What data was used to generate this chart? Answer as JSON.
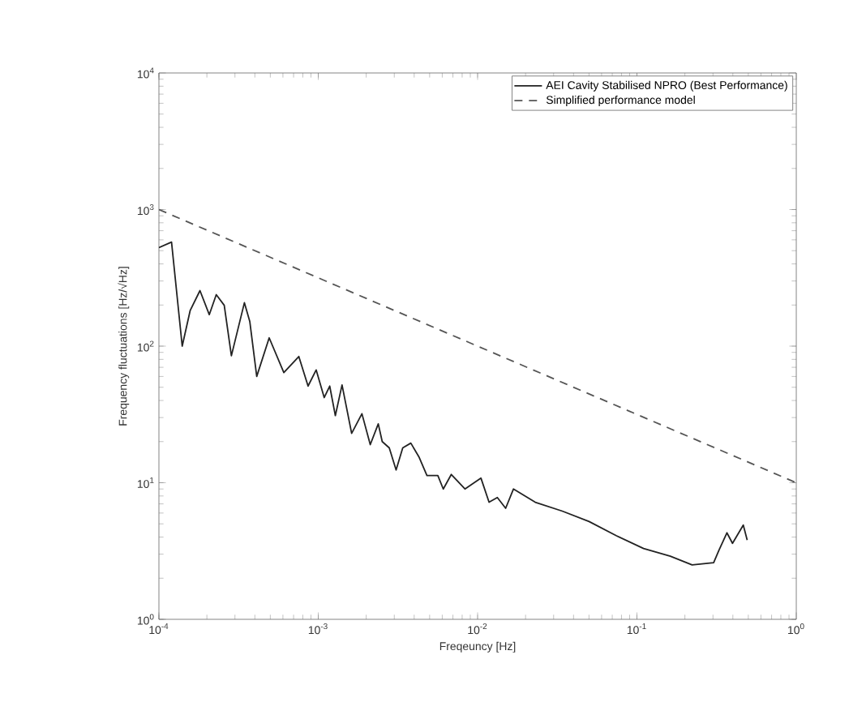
{
  "chart_data": {
    "type": "line",
    "xlabel": "Freqeuncy [Hz]",
    "ylabel": "Frequency fluctuations [Hz/√Hz]",
    "log": "xy",
    "legend": "top right",
    "xlim": [
      0.0001,
      1
    ],
    "ylim": [
      1,
      10000
    ],
    "xticks": [
      {
        "value": 0.0001,
        "label": "10$^{-4}$"
      },
      {
        "value": 0.001,
        "label": "10$^{-3}$"
      },
      {
        "value": 0.01,
        "label": "10$^{-2}$"
      },
      {
        "value": 0.1,
        "label": "10$^{-1}$"
      },
      {
        "value": 1,
        "label": "10$^{0}$"
      }
    ],
    "yticks": [
      {
        "value": 1,
        "label": "10$^{0}$"
      },
      {
        "value": 10,
        "label": "10$^{1}$"
      },
      {
        "value": 100,
        "label": "10$^{2}$"
      },
      {
        "value": 1000,
        "label": "10$^{3}$"
      },
      {
        "value": 10000,
        "label": "10$^{4}$"
      }
    ],
    "series": [
      {
        "name": "AEI Cavity Stabilised NPRO (Best Performance)",
        "color": "#222222",
        "line_style": "solid",
        "x": [
          0.0001,
          0.00012,
          0.00014,
          0.000157,
          0.000181,
          0.000207,
          0.000229,
          0.000257,
          0.000285,
          0.000344,
          0.000372,
          0.000411,
          0.000492,
          0.000608,
          0.000755,
          0.000863,
          0.00097,
          0.00109,
          0.00118,
          0.00128,
          0.00141,
          0.00162,
          0.00188,
          0.00212,
          0.00238,
          0.00252,
          0.00279,
          0.00308,
          0.00339,
          0.00381,
          0.00428,
          0.00481,
          0.00563,
          0.00609,
          0.00684,
          0.00833,
          0.0105,
          0.0118,
          0.0133,
          0.015,
          0.0168,
          0.023,
          0.034,
          0.0501,
          0.0741,
          0.11,
          0.162,
          0.222,
          0.303,
          0.327,
          0.367,
          0.398,
          0.465,
          0.492
        ],
        "values": [
          527,
          578,
          100,
          182,
          255,
          170,
          238,
          199,
          85,
          208,
          151,
          60,
          115,
          64,
          84,
          51,
          67,
          42,
          51,
          31,
          52,
          23,
          32,
          19,
          27,
          20,
          18,
          12.4,
          18,
          19.5,
          15.5,
          11.3,
          11.3,
          9.0,
          11.5,
          9.0,
          10.8,
          7.2,
          7.8,
          6.5,
          9.0,
          7.2,
          6.2,
          5.2,
          4.1,
          3.3,
          2.9,
          2.5,
          2.6,
          3.2,
          4.3,
          3.6,
          4.9,
          3.8
        ]
      },
      {
        "name": "Simplified performance model",
        "color": "#555555",
        "line_style": "dashed",
        "x": [
          0.0001,
          1
        ],
        "values": [
          1000,
          10
        ]
      }
    ]
  }
}
